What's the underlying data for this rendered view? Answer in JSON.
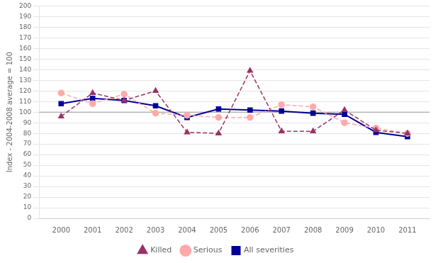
{
  "chart_data": {
    "type": "line",
    "x": [
      2000,
      2001,
      2002,
      2003,
      2004,
      2005,
      2006,
      2007,
      2008,
      2009,
      2010,
      2011
    ],
    "xlim": [
      1999.3,
      2011.7
    ],
    "xticks": [
      2000,
      2001,
      2002,
      2003,
      2004,
      2005,
      2006,
      2007,
      2008,
      2009,
      2010,
      2011
    ],
    "ylim": [
      0,
      200
    ],
    "yticks": [
      0,
      10,
      20,
      30,
      40,
      50,
      60,
      70,
      80,
      90,
      100,
      110,
      120,
      130,
      140,
      150,
      160,
      170,
      180,
      190,
      200
    ],
    "ylabel": "Index - 2004-2008 average = 100",
    "grid": "y",
    "legend": "bottom",
    "hline": {
      "y": 100,
      "color": "#999999"
    },
    "series": [
      {
        "name": "Killed",
        "color": "#993366",
        "marker": "triangle",
        "line_style": "dashed",
        "values": [
          96,
          118,
          111,
          120,
          81,
          80,
          139,
          82,
          82,
          102,
          83,
          80
        ]
      },
      {
        "name": "Serious",
        "color": "#ffaaaa",
        "marker": "circle",
        "line_style": "dashed",
        "values": [
          118,
          108,
          117,
          99,
          97,
          95,
          95,
          107,
          105,
          90,
          85,
          80
        ]
      },
      {
        "name": "All severities",
        "color": "#000099",
        "marker": "square",
        "line_style": "solid",
        "values": [
          108,
          113,
          111,
          106,
          95,
          103,
          102,
          101,
          99,
          98,
          81,
          77
        ]
      }
    ]
  }
}
